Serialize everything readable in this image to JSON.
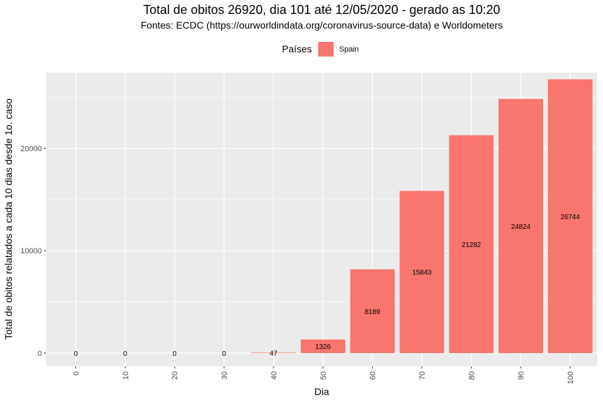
{
  "chart_data": {
    "type": "bar",
    "title": "Total de obitos 26920, dia 101 até 12/05/2020 - gerado as 10:20",
    "subtitle": "Fontes: ECDC (https://ourworldindata.org/coronavirus-source-data) e Worldometers",
    "xlabel": "Dia",
    "ylabel": "Total de obitos relatados a cada 10 dias desde 1o. caso",
    "legend": {
      "title": "Países",
      "position": "top"
    },
    "categories": [
      "0",
      "10",
      "20",
      "30",
      "40",
      "50",
      "60",
      "70",
      "80",
      "90",
      "100"
    ],
    "x": [
      0,
      10,
      20,
      30,
      40,
      50,
      60,
      70,
      80,
      90,
      100
    ],
    "series": [
      {
        "name": "Spain",
        "color": "#F8766D",
        "values": [
          0,
          0,
          0,
          0,
          47,
          1326,
          8189,
          15843,
          21282,
          24824,
          26744
        ]
      }
    ],
    "yticks": [
      0,
      10000,
      20000
    ],
    "ytick_labels": [
      "0",
      "10000",
      "20000"
    ],
    "ylim": [
      -1300,
      27400
    ],
    "xlim": [
      -6,
      105.5
    ],
    "grid": true,
    "panel_color": "#EBEBEB"
  }
}
